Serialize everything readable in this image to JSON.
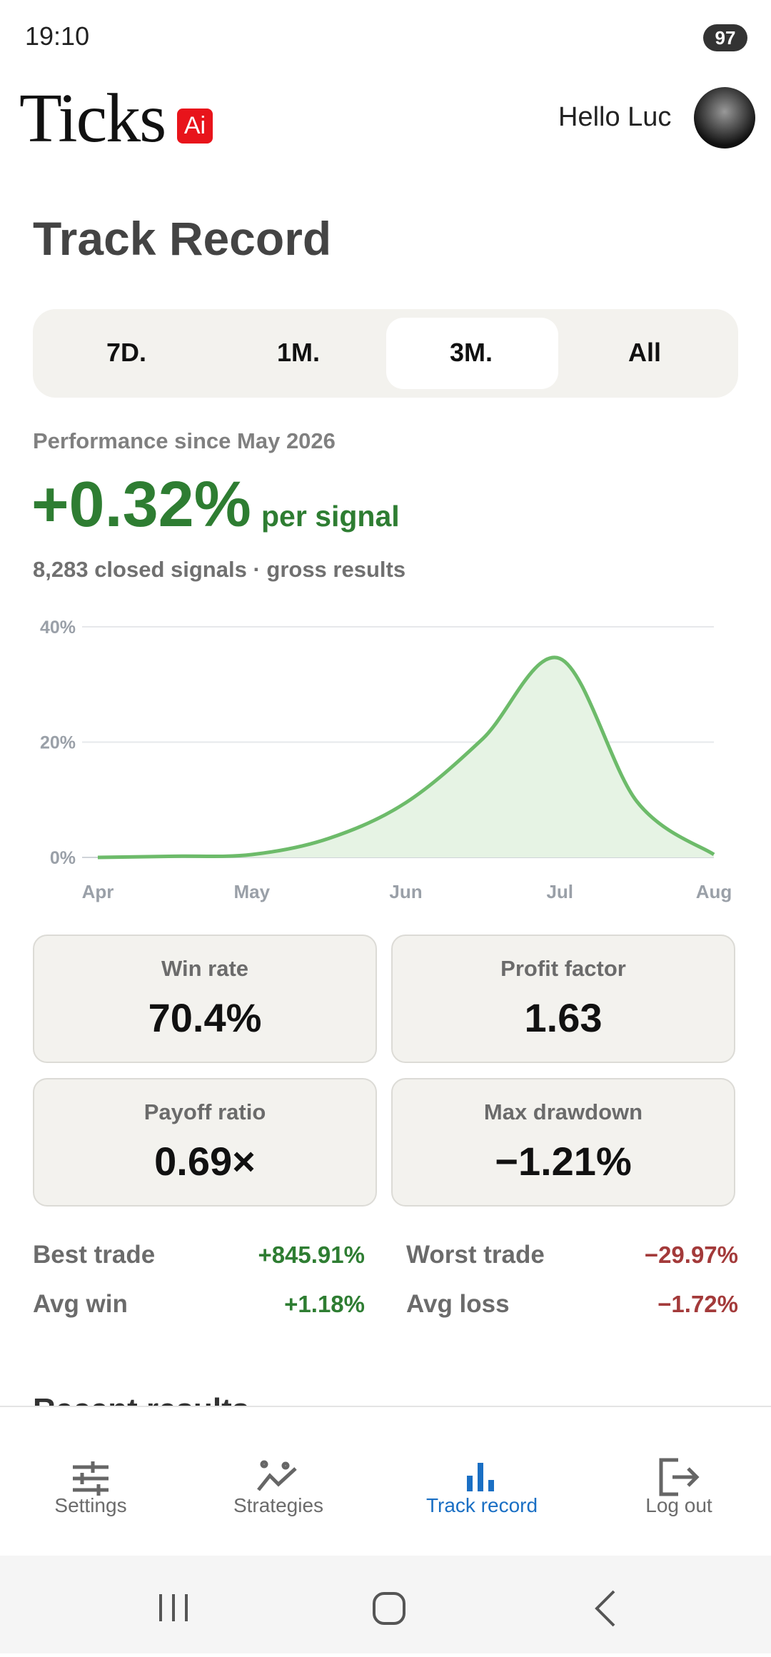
{
  "status_bar": {
    "time": "19:10",
    "battery": "97"
  },
  "header": {
    "logo": "Ticks",
    "logo_badge": "Ai",
    "greeting": "Hello Luc"
  },
  "page": {
    "title": "Track Record"
  },
  "tabs": [
    "7D.",
    "1M.",
    "3M.",
    "All"
  ],
  "performance": {
    "since": "Performance since May 2026",
    "value": "+0.32%",
    "unit": "per signal",
    "subtitle": "8,283 closed signals · gross results"
  },
  "chart_data": {
    "type": "area",
    "categories": [
      "Apr",
      null,
      "May",
      null,
      "Jun",
      null,
      "Jul",
      null,
      "Aug"
    ],
    "values": [
      0,
      0.2,
      0.5,
      3.3,
      9.5,
      20.6,
      34.5,
      9.7,
      0.5
    ],
    "color": "#6dbb6a",
    "fill": "#e6f3e4",
    "ylim": [
      0,
      40
    ],
    "yticks": [
      {
        "value": 0,
        "label": "0%"
      },
      {
        "value": 20,
        "label": "20%"
      },
      {
        "value": 40,
        "label": "40%"
      }
    ],
    "grid": true
  },
  "stats": [
    {
      "label": "Win rate",
      "value": "70.4%"
    },
    {
      "label": "Profit factor",
      "value": "1.63"
    },
    {
      "label": "Payoff ratio",
      "value": "0.69×"
    },
    {
      "label": "Max drawdown",
      "value": "−1.21%"
    }
  ],
  "trades": [
    {
      "label": "Best trade",
      "value": "+845.91%"
    },
    {
      "label": "Worst trade",
      "value": "−29.97%"
    },
    {
      "label": "Avg win",
      "value": "+1.18%"
    },
    {
      "label": "Avg loss",
      "value": "−1.72%"
    }
  ],
  "section": {
    "title": "Recent results"
  },
  "nav": [
    "Settings",
    "Strategies",
    "Track record",
    "Log out"
  ]
}
